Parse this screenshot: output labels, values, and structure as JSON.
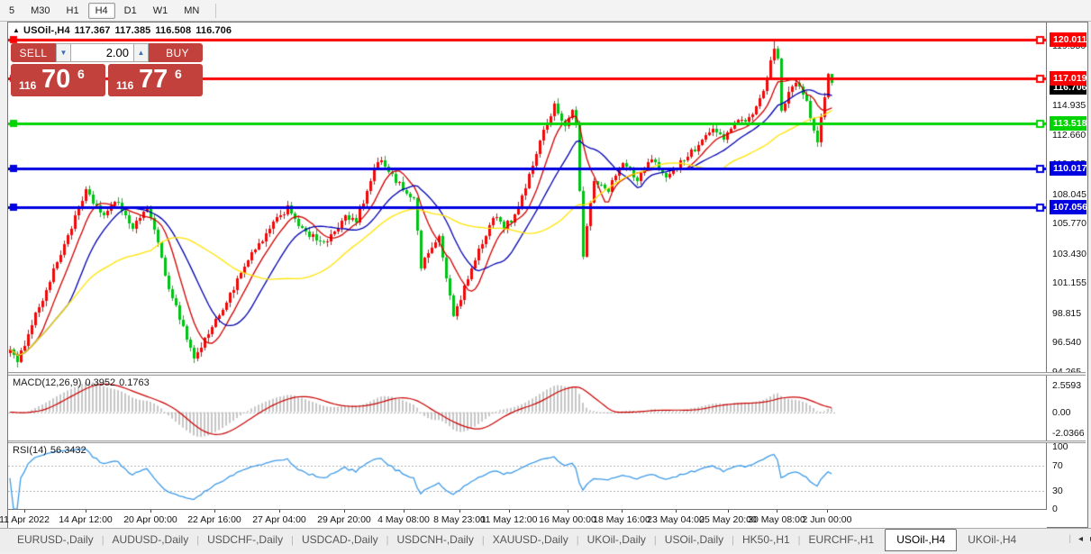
{
  "toolbar": {
    "timeframes": [
      "5",
      "M30",
      "H1",
      "H4",
      "D1",
      "W1",
      "MN"
    ],
    "active": "H4"
  },
  "chart": {
    "title": {
      "symbol": "USOil-,H4",
      "open": "117.367",
      "high": "117.385",
      "low": "116.508",
      "close": "116.706"
    },
    "trade_panel": {
      "sell_label": "SELL",
      "buy_label": "BUY",
      "volume": "2.00",
      "sell_price": {
        "prefix": "116",
        "big": "70",
        "sup": "6"
      },
      "buy_price": {
        "prefix": "116",
        "big": "77",
        "sup": "6"
      }
    }
  },
  "chart_data": {
    "type": "candlestick",
    "symbol": "USOil-,H4",
    "timeframe": "H4",
    "bull_color": "#ee0a0a",
    "bear_color": "#00c214",
    "last_ohlc": {
      "o": 117.367,
      "h": 117.385,
      "l": 116.508,
      "c": 116.706
    },
    "price_axis_ticks": [
      119.55,
      117.225,
      114.935,
      112.66,
      110.385,
      108.045,
      105.77,
      103.43,
      101.155,
      98.815,
      96.54,
      94.265
    ],
    "levels": [
      {
        "price": 120.011,
        "label": "120.011",
        "color": "#fb0000"
      },
      {
        "price": 117.019,
        "label": "117.019",
        "color": "#fb0000"
      },
      {
        "price": 113.518,
        "label": "113.518",
        "color": "#00d400"
      },
      {
        "price": 110.017,
        "label": "110.017",
        "color": "#0000e0"
      },
      {
        "price": 107.056,
        "label": "107.056",
        "color": "#0000e0"
      }
    ],
    "current_price": {
      "value": 116.706,
      "label": "116.706",
      "color": "#000000"
    },
    "ma_lines": [
      {
        "period": 8,
        "color": "#d40000"
      },
      {
        "period": 17,
        "color": "#0000b4"
      },
      {
        "period": 40,
        "color": "#ffe400"
      }
    ],
    "candle_count": 229,
    "price_path": [
      [
        0,
        96.2
      ],
      [
        2,
        94.8
      ],
      [
        5,
        97.4
      ],
      [
        10,
        100.6
      ],
      [
        15,
        104.2
      ],
      [
        21,
        108.2
      ],
      [
        26,
        106.4
      ],
      [
        30,
        107.5
      ],
      [
        34,
        105.3
      ],
      [
        38,
        107.2
      ],
      [
        44,
        100.9
      ],
      [
        51,
        95.3
      ],
      [
        58,
        98.7
      ],
      [
        66,
        102.9
      ],
      [
        73,
        105.7
      ],
      [
        77,
        107.1
      ],
      [
        82,
        104.9
      ],
      [
        88,
        104.3
      ],
      [
        93,
        106.3
      ],
      [
        96,
        105.9
      ],
      [
        99,
        108.1
      ],
      [
        102,
        110.8
      ],
      [
        106,
        109.4
      ],
      [
        110,
        108.2
      ],
      [
        112,
        107.8
      ],
      [
        114,
        102.4
      ],
      [
        117,
        104.1
      ],
      [
        119,
        104.6
      ],
      [
        121,
        101.6
      ],
      [
        123,
        98.6
      ],
      [
        128,
        102.2
      ],
      [
        132,
        104.9
      ],
      [
        134,
        106.4
      ],
      [
        137,
        105.6
      ],
      [
        139,
        106.0
      ],
      [
        143,
        108.4
      ],
      [
        147,
        112.3
      ],
      [
        151,
        115.0
      ],
      [
        154,
        113.3
      ],
      [
        156,
        114.5
      ],
      [
        157,
        113.4
      ],
      [
        159,
        103.4
      ],
      [
        162,
        109.2
      ],
      [
        166,
        108.5
      ],
      [
        170,
        110.4
      ],
      [
        174,
        109.2
      ],
      [
        178,
        110.7
      ],
      [
        182,
        109.5
      ],
      [
        187,
        110.7
      ],
      [
        191,
        111.9
      ],
      [
        195,
        113.1
      ],
      [
        198,
        112.5
      ],
      [
        202,
        113.6
      ],
      [
        205,
        114.1
      ],
      [
        208,
        115.3
      ],
      [
        210,
        117.2
      ],
      [
        212,
        119.6
      ],
      [
        213,
        118.4
      ],
      [
        214,
        114.3
      ],
      [
        216,
        116.2
      ],
      [
        218,
        116.8
      ],
      [
        221,
        115.2
      ],
      [
        223,
        112.9
      ],
      [
        224,
        111.9
      ],
      [
        226,
        115.7
      ],
      [
        227,
        117.3
      ],
      [
        228,
        116.7
      ]
    ],
    "macd": {
      "label": "MACD(12,26,9)",
      "main_value": "0.3952",
      "signal_value": "0.1763",
      "axis_ticks": [
        2.5593,
        0.0,
        -2.0366
      ],
      "histogram_color": "#c6c6c6",
      "signal_color": "#cc0000"
    },
    "rsi": {
      "label": "RSI(14)",
      "value": "56.3432",
      "axis_ticks": [
        100,
        70,
        30,
        0
      ],
      "guide_levels": [
        70,
        30
      ],
      "color": "#3e9be9"
    },
    "time_axis": {
      "labels": [
        "11 Apr 2022",
        "14 Apr 12:00",
        "20 Apr 00:00",
        "22 Apr 16:00",
        "27 Apr 04:00",
        "29 Apr 20:00",
        "4 May 08:00",
        "8 May 23:00",
        "11 May 12:00",
        "16 May 00:00",
        "18 May 16:00",
        "23 May 04:00",
        "25 May 20:00",
        "30 May 08:00",
        "2 Jun 00:00"
      ],
      "centers": [
        27,
        95,
        167,
        238,
        310,
        382,
        448,
        510,
        565,
        630,
        690,
        750,
        808,
        862,
        918
      ]
    }
  },
  "tabs": {
    "items": [
      "EURUSD-,Daily",
      "AUDUSD-,Daily",
      "USDCHF-,Daily",
      "USDCAD-,Daily",
      "USDCNH-,Daily",
      "XAUUSD-,Daily",
      "UKOil-,Daily",
      "USOil-,Daily",
      "HK50-,H1",
      "EURCHF-,H1",
      "USOil-,H4",
      "UKOil-,H4"
    ],
    "active": "USOil-,H4",
    "scroll_left": "◂",
    "scroll_right": "▸"
  }
}
